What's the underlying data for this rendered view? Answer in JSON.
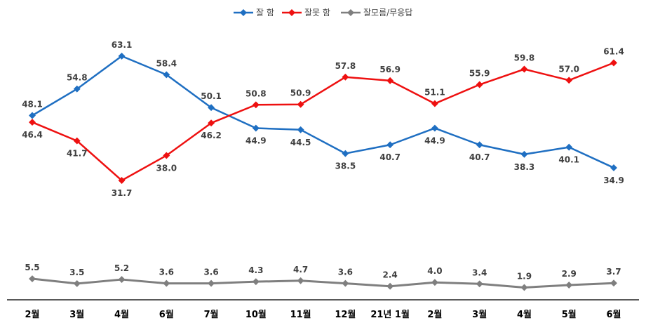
{
  "chart_data": {
    "type": "line",
    "categories": [
      "2월",
      "3월",
      "4월",
      "6월",
      "7월",
      "10월",
      "11월",
      "12월",
      "21년 1월",
      "2월",
      "3월",
      "4월",
      "5월",
      "6월"
    ],
    "series": [
      {
        "name": "잘 함",
        "color": "#1f6fc2",
        "values": [
          48.1,
          54.8,
          63.1,
          58.4,
          50.1,
          44.9,
          44.5,
          38.5,
          40.7,
          44.9,
          40.7,
          38.3,
          40.1,
          34.9
        ]
      },
      {
        "name": "잘못 함",
        "color": "#ee1010",
        "values": [
          46.4,
          41.7,
          31.7,
          38.0,
          46.2,
          50.8,
          50.9,
          57.8,
          56.9,
          51.1,
          55.9,
          59.8,
          57.0,
          61.4
        ]
      },
      {
        "name": "잘모름/무응답",
        "color": "#7f7f7f",
        "values": [
          5.5,
          3.5,
          5.2,
          3.6,
          3.6,
          4.3,
          4.7,
          3.6,
          2.4,
          4.0,
          3.4,
          1.9,
          2.9,
          3.7
        ]
      }
    ],
    "legend_position": "top-center",
    "grid": false,
    "ylim": [
      0,
      70
    ]
  }
}
